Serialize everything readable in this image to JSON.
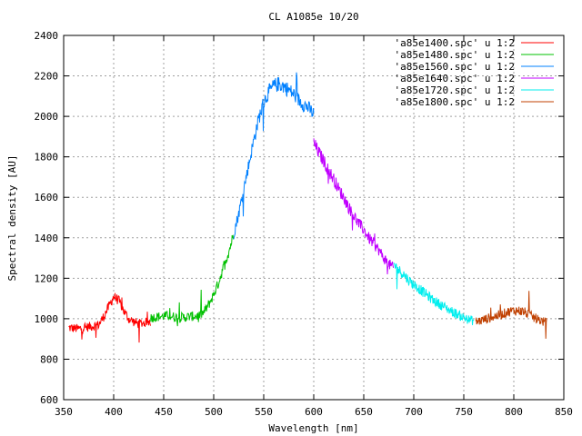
{
  "chart_data": {
    "type": "line",
    "title": "CL A1085e 10/20",
    "xlabel": "Wavelength [nm]",
    "ylabel": "Spectral density [AU]",
    "xlim": [
      350,
      850
    ],
    "ylim": [
      600,
      2400
    ],
    "xticks": [
      350,
      400,
      450,
      500,
      550,
      600,
      650,
      700,
      750,
      800,
      850
    ],
    "yticks": [
      600,
      800,
      1000,
      1200,
      1400,
      1600,
      1800,
      2000,
      2200,
      2400
    ],
    "grid": true,
    "legend_position": "top-right",
    "series": [
      {
        "name": "'a85e1400.spc' u 1:2",
        "color": "#ff0000",
        "x": [
          355,
          365,
          375,
          385,
          390,
          395,
          400,
          405,
          410,
          415,
          420,
          425,
          430,
          437
        ],
        "y": [
          955,
          950,
          960,
          970,
          1010,
          1060,
          1110,
          1090,
          1040,
          1000,
          985,
          975,
          980,
          985
        ]
      },
      {
        "name": "'a85e1480.spc' u 1:2",
        "color": "#00c000",
        "x": [
          437,
          445,
          455,
          465,
          475,
          485,
          490,
          495,
          500,
          505,
          510,
          515,
          520
        ],
        "y": [
          1005,
          1010,
          1015,
          1005,
          1010,
          1015,
          1030,
          1070,
          1120,
          1180,
          1260,
          1330,
          1420
        ]
      },
      {
        "name": "'a85e1560.spc' u 1:2",
        "color": "#0080ff",
        "x": [
          520,
          525,
          530,
          535,
          540,
          545,
          550,
          555,
          560,
          565,
          570,
          575,
          580,
          585,
          590,
          595,
          600
        ],
        "y": [
          1420,
          1520,
          1640,
          1760,
          1880,
          1990,
          2070,
          2120,
          2150,
          2160,
          2150,
          2130,
          2110,
          2080,
          2060,
          2040,
          2010
        ]
      },
      {
        "name": "'a85e1640.spc' u 1:2",
        "color": "#c000ff",
        "x": [
          600,
          605,
          610,
          615,
          620,
          625,
          630,
          635,
          640,
          645,
          650,
          655,
          660,
          665,
          670,
          675,
          680
        ],
        "y": [
          1870,
          1820,
          1780,
          1730,
          1690,
          1640,
          1600,
          1550,
          1510,
          1470,
          1440,
          1400,
          1370,
          1340,
          1300,
          1270,
          1250
        ]
      },
      {
        "name": "'a85e1720.spc' u 1:2",
        "color": "#00eeee",
        "x": [
          680,
          685,
          690,
          695,
          700,
          705,
          710,
          715,
          720,
          725,
          730,
          735,
          740,
          745,
          750,
          755,
          760
        ],
        "y": [
          1270,
          1240,
          1220,
          1190,
          1170,
          1150,
          1130,
          1110,
          1090,
          1075,
          1060,
          1045,
          1030,
          1020,
          1005,
          995,
          990
        ]
      },
      {
        "name": "'a85e1800.spc' u 1:2",
        "color": "#c04000",
        "x": [
          762,
          770,
          780,
          790,
          795,
          800,
          805,
          810,
          815,
          820,
          825,
          830,
          833
        ],
        "y": [
          985,
          995,
          1010,
          1025,
          1035,
          1040,
          1040,
          1035,
          1020,
          1005,
          995,
          985,
          980
        ]
      }
    ]
  }
}
